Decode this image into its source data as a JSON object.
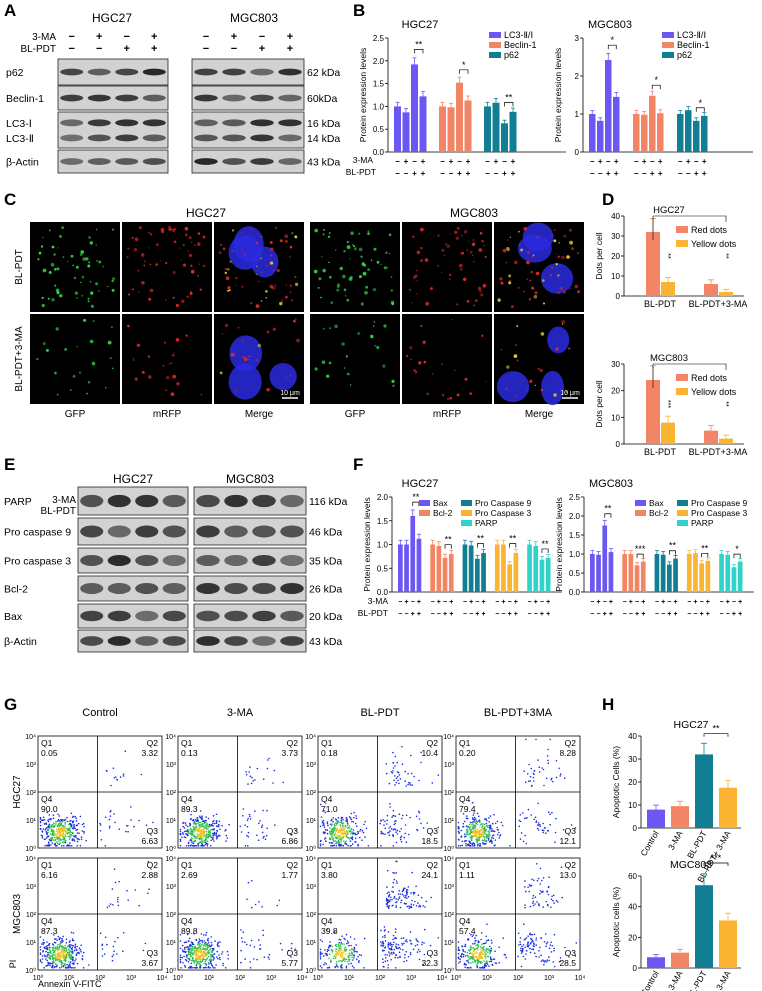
{
  "panels": {
    "A": {
      "letter": "A",
      "cell_lines": [
        "HGC27",
        "MGC803"
      ],
      "row_labels": [
        "3-MA",
        "BL-PDT"
      ],
      "treatment_signs": [
        [
          "−",
          "+",
          "−",
          "+"
        ],
        [
          "−",
          "−",
          "+",
          "+"
        ]
      ],
      "proteins": [
        "p62",
        "Beclin-1",
        "LC3-Ⅰ",
        "LC3-Ⅱ",
        "β-Actin"
      ],
      "kda": [
        "62 kDa",
        "60kDa",
        "16 kDa",
        "14 kDa",
        "43 kDa"
      ]
    },
    "B": {
      "letter": "B",
      "ylabel": "Protein expression levels",
      "legend": [
        "LC3-Ⅱ/Ⅰ",
        "Beclin-1",
        "p62"
      ],
      "colors": [
        "#6B57F2",
        "#F28566",
        "#117E93"
      ],
      "xrow_labels": [
        "3-MA",
        "BL-PDT"
      ]
    },
    "C": {
      "letter": "C",
      "cell_lines": [
        "HGC27",
        "MGC803"
      ],
      "row_labels": [
        "BL-PDT",
        "BL-PDT+3-MA"
      ],
      "column_labels": [
        "GFP",
        "mRFP",
        "Merge",
        "GFP",
        "mRFP",
        "Merge"
      ],
      "scalebar": "10 μm"
    },
    "D": {
      "letter": "D",
      "ylabel": "Dots per cell",
      "legend": [
        "Red dots",
        "Yellow dots"
      ],
      "colors": [
        "#F28566",
        "#FAB432"
      ],
      "categories": [
        "BL-PDT",
        "BL-PDT+3-MA"
      ]
    },
    "E": {
      "letter": "E",
      "cell_lines": [
        "HGC27",
        "MGC803"
      ],
      "row_labels": [
        "3-MA",
        "BL-PDT"
      ],
      "treatment_signs": [
        [
          "−",
          "+",
          "−",
          "+"
        ],
        [
          "−",
          "−",
          "+",
          "+"
        ]
      ],
      "proteins": [
        "PARP",
        "Pro caspase 9",
        "Pro caspase 3",
        "Bcl-2",
        "Bax",
        "β-Actin"
      ],
      "kda": [
        "116 kDa",
        "46 kDa",
        "35 kDa",
        "26 kDa",
        "20 kDa",
        "43 kDa"
      ]
    },
    "F": {
      "letter": "F",
      "ylabel": "Protein expression levels",
      "legend": [
        "Bax",
        "Bcl-2",
        "Pro Caspase 9",
        "Pro Caspase 3",
        "PARP"
      ],
      "colors": [
        "#6B57F2",
        "#F28566",
        "#117E93",
        "#FAB432",
        "#2ED3C9"
      ],
      "xrow_labels": [
        "3-MA",
        "BL-PDT"
      ]
    },
    "G": {
      "letter": "G",
      "conditions": [
        "Control",
        "3-MA",
        "BL-PDT",
        "BL-PDT+3MA"
      ],
      "cell_lines": [
        "HGC27",
        "MGC803"
      ],
      "xlabel": "Annexin V-FITC",
      "ylabel": "PI",
      "quadrants": [
        [
          {
            "q1": "0.05",
            "q2": "3.32",
            "q3": "6.63",
            "q4": "90.0"
          },
          {
            "q1": "0.13",
            "q2": "3.73",
            "q3": "6.86",
            "q4": "89.3"
          },
          {
            "q1": "0.18",
            "q2": "10.4",
            "q3": "18.5",
            "q4": "71.0"
          },
          {
            "q1": "0.20",
            "q2": "8.28",
            "q3": "12.1",
            "q4": "79.4"
          }
        ],
        [
          {
            "q1": "6.16",
            "q2": "2.88",
            "q3": "3.67",
            "q4": "87.3"
          },
          {
            "q1": "2.69",
            "q2": "1.77",
            "q3": "5.77",
            "q4": "89.8"
          },
          {
            "q1": "3.80",
            "q2": "24.1",
            "q3": "32.3",
            "q4": "39.8"
          },
          {
            "q1": "1.11",
            "q2": "13.0",
            "q3": "28.5",
            "q4": "57.4"
          }
        ]
      ]
    },
    "H": {
      "letter": "H",
      "ylabels": [
        "Apoptotic Cells (%)",
        "Apoptotic cells (%)"
      ],
      "colors": [
        "#6B57F2",
        "#F28566",
        "#117E93",
        "#FAB432"
      ]
    }
  },
  "chart_data": [
    {
      "panel": "B",
      "type": "bar",
      "title": "HGC27",
      "ylabel": "Protein expression levels",
      "ylim": [
        0,
        2.5
      ],
      "yticks": [
        0.0,
        0.5,
        1.0,
        1.5,
        2.0,
        2.5
      ],
      "x_rows": {
        "3-MA": [
          "−",
          "+",
          "−",
          "+"
        ],
        "BL-PDT": [
          "−",
          "−",
          "+",
          "+"
        ]
      },
      "series": [
        {
          "name": "LC3-Ⅱ/Ⅰ",
          "values": [
            1.0,
            0.87,
            1.92,
            1.22
          ],
          "sig": "**"
        },
        {
          "name": "Beclin-1",
          "values": [
            1.0,
            0.98,
            1.52,
            1.13
          ],
          "sig": "*"
        },
        {
          "name": "p62",
          "values": [
            1.0,
            1.08,
            0.63,
            0.88
          ],
          "sig": "**"
        }
      ]
    },
    {
      "panel": "B",
      "type": "bar",
      "title": "MGC803",
      "ylabel": "Protein expression levels",
      "ylim": [
        0,
        3
      ],
      "yticks": [
        0,
        1,
        2,
        3
      ],
      "x_rows": {
        "3-MA": [
          "−",
          "+",
          "−",
          "+"
        ],
        "BL-PDT": [
          "−",
          "−",
          "+",
          "+"
        ]
      },
      "series": [
        {
          "name": "LC3-Ⅱ/Ⅰ",
          "values": [
            1.0,
            0.82,
            2.42,
            1.45
          ],
          "sig": "*"
        },
        {
          "name": "Beclin-1",
          "values": [
            1.0,
            0.98,
            1.48,
            1.02
          ],
          "sig": "*"
        },
        {
          "name": "p62",
          "values": [
            1.0,
            1.1,
            0.82,
            0.95
          ],
          "sig": "*"
        }
      ]
    },
    {
      "panel": "D",
      "type": "bar",
      "title": "HGC27",
      "ylabel": "Dots per cell",
      "ylim": [
        0,
        40
      ],
      "yticks": [
        0,
        10,
        20,
        30,
        40
      ],
      "categories": [
        "BL-PDT",
        "BL-PDT+3-MA"
      ],
      "series": [
        {
          "name": "Red dots",
          "values": [
            32,
            6
          ]
        },
        {
          "name": "Yellow dots",
          "values": [
            7,
            2
          ]
        }
      ],
      "sig": [
        "**",
        "**"
      ]
    },
    {
      "panel": "D",
      "type": "bar",
      "title": "MGC803",
      "ylabel": "Dots per cell",
      "ylim": [
        0,
        30
      ],
      "yticks": [
        0,
        10,
        20,
        30
      ],
      "categories": [
        "BL-PDT",
        "BL-PDT+3-MA"
      ],
      "series": [
        {
          "name": "Red dots",
          "values": [
            24,
            5
          ]
        },
        {
          "name": "Yellow dots",
          "values": [
            8,
            2
          ]
        }
      ],
      "sig": [
        "***",
        "**"
      ]
    },
    {
      "panel": "F",
      "type": "bar",
      "title": "HGC27",
      "ylabel": "Protein expression levels",
      "ylim": [
        0,
        2.0
      ],
      "yticks": [
        0.0,
        0.5,
        1.0,
        1.5,
        2.0
      ],
      "x_rows": {
        "3-MA": [
          "−",
          "+",
          "−",
          "+"
        ],
        "BL-PDT": [
          "−",
          "−",
          "+",
          "+"
        ]
      },
      "series": [
        {
          "name": "Bax",
          "values": [
            1.0,
            1.0,
            1.6,
            1.12
          ],
          "sig": "**"
        },
        {
          "name": "Bcl-2",
          "values": [
            1.0,
            0.97,
            0.72,
            0.8
          ],
          "sig": "**"
        },
        {
          "name": "Pro Caspase 9",
          "values": [
            1.0,
            0.98,
            0.7,
            0.82
          ],
          "sig": "**"
        },
        {
          "name": "Pro Caspase 3",
          "values": [
            1.0,
            1.0,
            0.58,
            0.82
          ],
          "sig": "**"
        },
        {
          "name": "PARP",
          "values": [
            1.0,
            0.97,
            0.68,
            0.72
          ],
          "sig": "**"
        }
      ]
    },
    {
      "panel": "F",
      "type": "bar",
      "title": "MGC803",
      "ylabel": "Protein expression levels",
      "ylim": [
        0,
        2.5
      ],
      "yticks": [
        0.0,
        0.5,
        1.0,
        1.5,
        2.0,
        2.5
      ],
      "x_rows": {
        "3-MA": [
          "−",
          "+",
          "−",
          "+"
        ],
        "BL-PDT": [
          "−",
          "−",
          "+",
          "+"
        ]
      },
      "series": [
        {
          "name": "Bax",
          "values": [
            1.0,
            0.98,
            1.75,
            1.05
          ],
          "sig": "**"
        },
        {
          "name": "Bcl-2",
          "values": [
            1.0,
            1.0,
            0.7,
            0.8
          ],
          "sig": "***"
        },
        {
          "name": "Pro Caspase 9",
          "values": [
            1.0,
            0.98,
            0.72,
            0.88
          ],
          "sig": "**"
        },
        {
          "name": "Pro Caspase 3",
          "values": [
            1.0,
            1.02,
            0.75,
            0.82
          ],
          "sig": "**"
        },
        {
          "name": "PARP",
          "values": [
            1.0,
            0.98,
            0.65,
            0.8
          ],
          "sig": "*"
        }
      ]
    },
    {
      "panel": "H",
      "type": "bar",
      "title": "HGC27",
      "ylabel": "Apoptotic Cells (%)",
      "ylim": [
        0,
        40
      ],
      "yticks": [
        0,
        10,
        20,
        30,
        40
      ],
      "categories": [
        "Control",
        "3-MA",
        "BL-PDT",
        "BL-PDT+ 3-MA"
      ],
      "values": [
        8,
        9.5,
        32,
        17.5
      ],
      "sig": "**"
    },
    {
      "panel": "H",
      "type": "bar",
      "title": "MGC803",
      "ylabel": "Apoptotic cells (%)",
      "ylim": [
        0,
        60
      ],
      "yticks": [
        0,
        20,
        40,
        60
      ],
      "categories": [
        "Control",
        "3-MA",
        "BL-PDT",
        "BL-PDT+ 3-MA"
      ],
      "values": [
        7,
        10,
        54,
        31
      ],
      "sig": "***"
    }
  ]
}
